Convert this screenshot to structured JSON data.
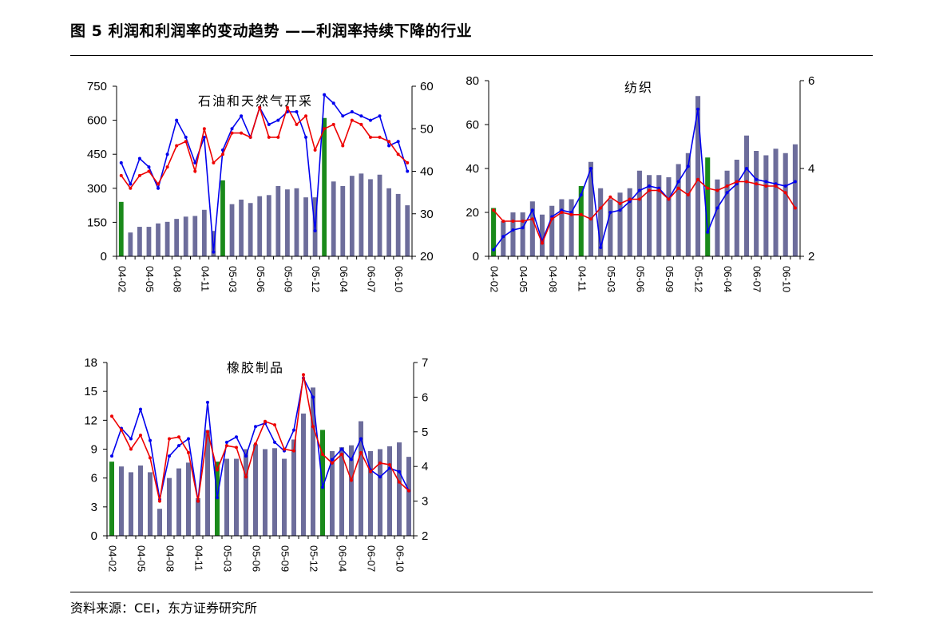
{
  "figure": {
    "title": "图 5 利润和利润率的变动趋势 ——利润率持续下降的行业",
    "source": "资料来源：CEI，东方证券研究所"
  },
  "colors": {
    "bar": "#6d6d9b",
    "bar_highlight": "#1a8a1a",
    "line_blue": "#0000ee",
    "line_red": "#ee0000"
  },
  "chart_data": [
    {
      "type": "bar+line",
      "title": "石油和天然气开采",
      "x_tick_labels": [
        "04-02",
        "04-05",
        "04-08",
        "04-11",
        "05-03",
        "05-06",
        "05-09",
        "05-12",
        "06-04",
        "06-07",
        "06-10"
      ],
      "left_axis": {
        "ylim": [
          0,
          750
        ],
        "ticks": [
          0,
          150,
          300,
          450,
          600,
          750
        ]
      },
      "right_axis": {
        "ylim": [
          20,
          60
        ],
        "ticks": [
          20,
          30,
          40,
          50,
          60
        ]
      },
      "bars": [
        240,
        105,
        130,
        130,
        145,
        152,
        165,
        175,
        178,
        205,
        112,
        335,
        230,
        250,
        235,
        265,
        270,
        310,
        295,
        300,
        260,
        260,
        610,
        330,
        310,
        355,
        365,
        340,
        360,
        300,
        275,
        225
      ],
      "highlight_bars": [
        0,
        11,
        22
      ],
      "series": [
        {
          "values": [
            42,
            37,
            43,
            41,
            36,
            44,
            52,
            48,
            42,
            48,
            21,
            45,
            50,
            53,
            48,
            55,
            51,
            52,
            54,
            54,
            48,
            26,
            58,
            56,
            53,
            54,
            53,
            52,
            53,
            46,
            47,
            40
          ]
        },
        {
          "values": [
            39,
            36,
            39,
            40,
            37,
            41,
            46,
            47,
            40,
            50,
            42,
            44,
            49,
            49,
            48,
            55,
            48,
            48,
            55,
            51,
            53,
            45,
            50,
            51,
            46,
            52,
            51,
            48,
            48,
            47,
            44,
            42
          ]
        }
      ]
    },
    {
      "type": "bar+line",
      "title": "纺织",
      "x_tick_labels": [
        "04-02",
        "04-05",
        "04-08",
        "04-11",
        "05-03",
        "05-06",
        "05-09",
        "05-12",
        "06-04",
        "06-07",
        "06-10"
      ],
      "left_axis": {
        "ylim": [
          0,
          80
        ],
        "ticks": [
          0,
          20,
          40,
          60,
          80
        ]
      },
      "right_axis": {
        "ylim": [
          2,
          6
        ],
        "ticks": [
          2,
          4,
          6
        ]
      },
      "bars": [
        22,
        16,
        20,
        20,
        25,
        19,
        23,
        26,
        26,
        32,
        43,
        31,
        26,
        29,
        31,
        39,
        37,
        37,
        36,
        42,
        47,
        73,
        45,
        35,
        39,
        44,
        55,
        48,
        46,
        49,
        47,
        51
      ],
      "highlight_bars": [
        0,
        9,
        22
      ],
      "series": [
        {
          "values": [
            2.15,
            2.45,
            2.6,
            2.65,
            3.05,
            2.35,
            2.9,
            3.05,
            3.0,
            3.4,
            4.0,
            2.2,
            3.0,
            3.05,
            3.25,
            3.5,
            3.6,
            3.55,
            3.3,
            3.7,
            4.05,
            5.35,
            2.55,
            3.1,
            3.45,
            3.65,
            4.0,
            3.75,
            3.7,
            3.65,
            3.6,
            3.7
          ]
        },
        {
          "values": [
            3.05,
            2.8,
            2.8,
            2.8,
            2.85,
            2.3,
            2.85,
            3.0,
            2.95,
            2.95,
            2.85,
            3.1,
            3.35,
            3.2,
            3.3,
            3.3,
            3.5,
            3.5,
            3.3,
            3.55,
            3.4,
            3.75,
            3.55,
            3.5,
            3.6,
            3.7,
            3.7,
            3.65,
            3.6,
            3.6,
            3.45,
            3.1
          ]
        }
      ]
    },
    {
      "type": "bar+line",
      "title": "橡胶制品",
      "x_tick_labels": [
        "04-02",
        "04-05",
        "04-08",
        "04-11",
        "05-03",
        "05-06",
        "05-09",
        "05-12",
        "06-04",
        "06-07",
        "06-10"
      ],
      "left_axis": {
        "ylim": [
          0,
          18
        ],
        "ticks": [
          0,
          3,
          6,
          9,
          12,
          15,
          18
        ]
      },
      "right_axis": {
        "ylim": [
          2,
          7
        ],
        "ticks": [
          2,
          3,
          4,
          5,
          6,
          7
        ]
      },
      "bars": [
        7.7,
        7.2,
        6.6,
        7.3,
        6.6,
        2.8,
        6.0,
        7.0,
        7.6,
        3.9,
        11.0,
        7.7,
        8.0,
        8.0,
        9.0,
        9.5,
        9.0,
        9.1,
        8.0,
        10.0,
        12.7,
        15.4,
        11.0,
        8.8,
        9.2,
        9.4,
        11.9,
        8.8,
        9.0,
        9.3,
        9.7,
        8.2
      ],
      "highlight_bars": [
        0,
        11,
        22
      ],
      "series": [
        {
          "values": [
            4.3,
            5.1,
            4.8,
            5.65,
            4.75,
            3.05,
            4.3,
            4.6,
            4.8,
            3.0,
            5.85,
            3.1,
            4.7,
            4.85,
            4.3,
            5.15,
            5.25,
            4.7,
            4.45,
            5.05,
            6.55,
            6.0,
            3.4,
            4.2,
            4.5,
            4.2,
            4.8,
            3.9,
            3.7,
            3.95,
            3.85,
            3.3
          ]
        },
        {
          "values": [
            5.45,
            5.05,
            4.5,
            4.9,
            4.25,
            3.0,
            4.8,
            4.85,
            4.4,
            3.0,
            5.0,
            3.9,
            4.6,
            4.55,
            3.7,
            4.65,
            5.3,
            5.2,
            4.5,
            4.45,
            6.65,
            5.15,
            4.35,
            4.1,
            4.35,
            3.6,
            4.4,
            3.85,
            4.1,
            4.05,
            3.55,
            3.3
          ]
        }
      ]
    }
  ]
}
